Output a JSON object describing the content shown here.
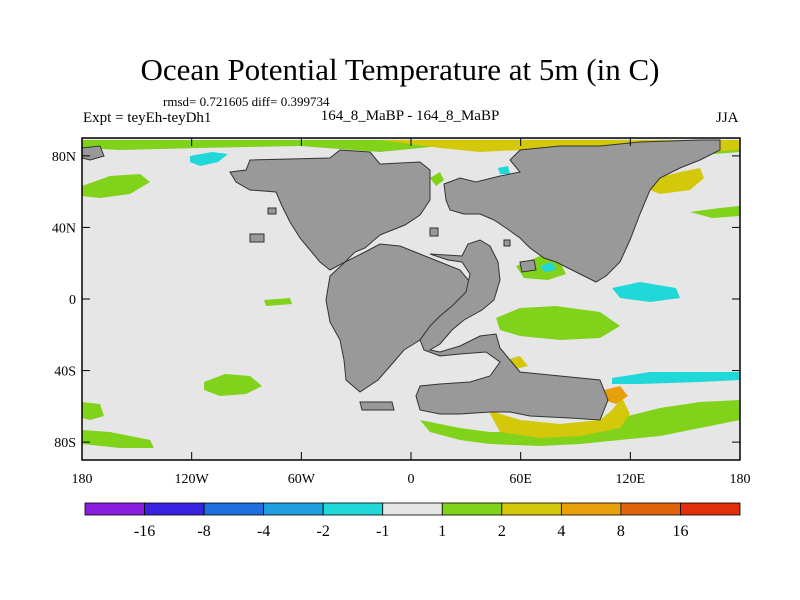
{
  "chart_data": {
    "type": "heatmap",
    "title": "Ocean Potential Temperature at 5m (in C)",
    "stats": "rmsd= 0.721605 diff= 0.399734",
    "left_label": "Expt = teyEh-teyDh1",
    "center_label": "164_8_MaBP - 164_8_MaBP",
    "right_label": "JJA",
    "x_axis": {
      "ticks": [
        "180",
        "120W",
        "60W",
        "0",
        "60E",
        "120E",
        "180"
      ],
      "range": [
        -180,
        180
      ]
    },
    "y_axis": {
      "ticks": [
        "80N",
        "40N",
        "0",
        "40S",
        "80S"
      ],
      "range": [
        -90,
        90
      ]
    },
    "colorbar": {
      "labels": [
        "-16",
        "-8",
        "-4",
        "-2",
        "-1",
        "1",
        "2",
        "4",
        "8",
        "16"
      ],
      "colors": [
        "#8a1fe0",
        "#3a23e0",
        "#1f6fe0",
        "#1ea0e0",
        "#20d8d8",
        "#e6e6e6",
        "#80d21b",
        "#d4c80a",
        "#e8a00a",
        "#e0620a",
        "#e02f0a"
      ]
    },
    "colors": {
      "land": "#999999",
      "background": "#e6e6e6"
    }
  }
}
